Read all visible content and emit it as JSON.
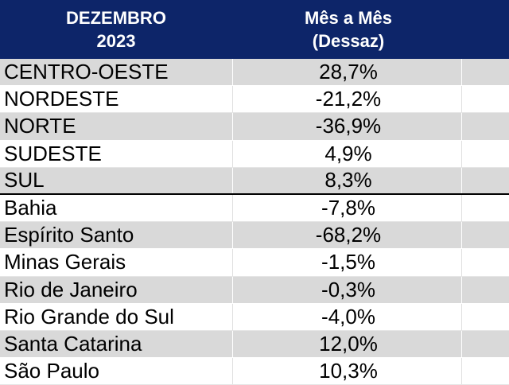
{
  "header": {
    "col1_line1": "DEZEMBRO",
    "col1_line2": "2023",
    "col2_line1": "Mês a Mês",
    "col2_line2": "(Dessaz)"
  },
  "rows": [
    {
      "region": "CENTRO-OESTE",
      "value": "28,7%"
    },
    {
      "region": "NORDESTE",
      "value": "-21,2%"
    },
    {
      "region": "NORTE",
      "value": "-36,9%"
    },
    {
      "region": "SUDESTE",
      "value": "4,9%"
    },
    {
      "region": "SUL",
      "value": "8,3%"
    },
    {
      "region": "Bahia",
      "value": "-7,8%"
    },
    {
      "region": "Espírito Santo",
      "value": "-68,2%"
    },
    {
      "region": "Minas Gerais",
      "value": "-1,5%"
    },
    {
      "region": "Rio de Janeiro",
      "value": "-0,3%"
    },
    {
      "region": "Rio Grande do Sul",
      "value": "-4,0%"
    },
    {
      "region": "Santa Catarina",
      "value": "12,0%"
    },
    {
      "region": "São Paulo",
      "value": "10,3%"
    }
  ],
  "colors": {
    "header_bg": "#0d2569",
    "header_text": "#ffffff",
    "row_shade": "#d9d9d9",
    "row_white": "#ffffff"
  }
}
